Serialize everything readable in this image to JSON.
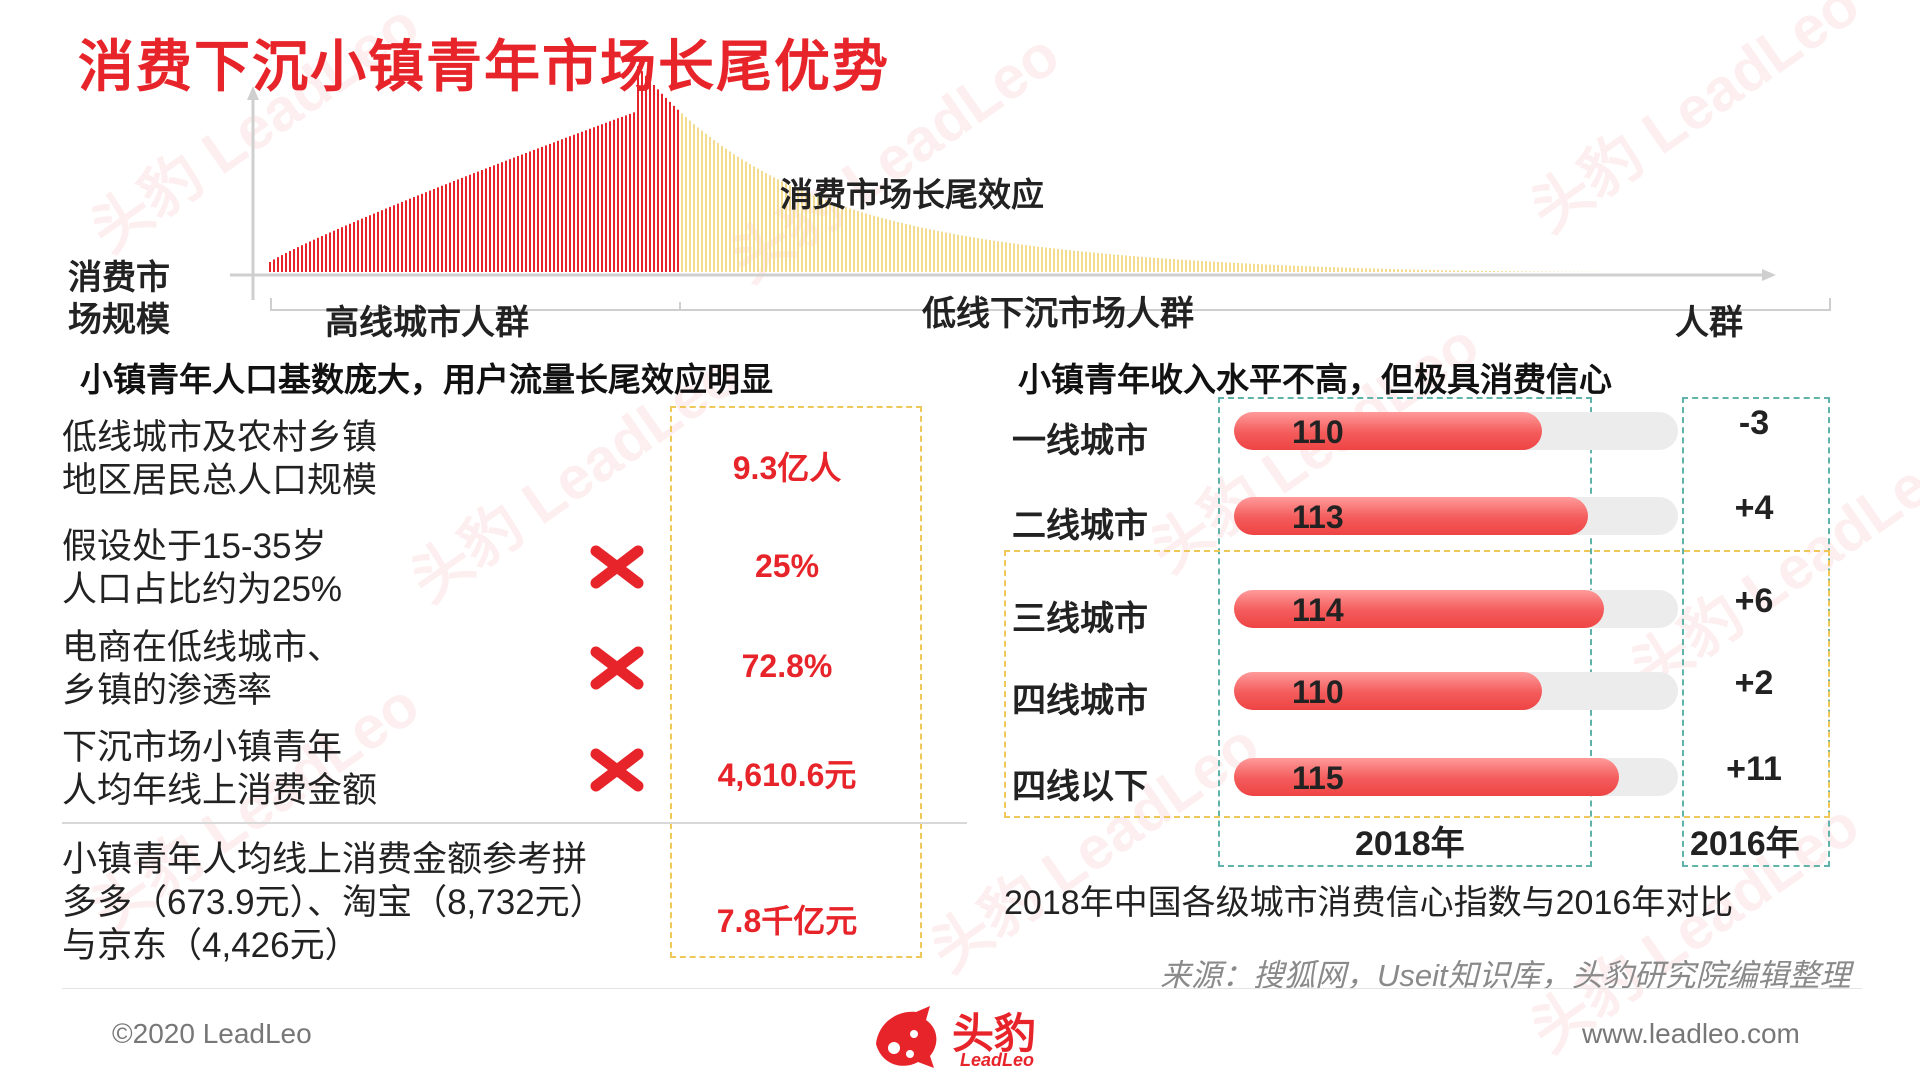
{
  "title": "消费下沉小镇青年市场长尾优势",
  "chart_top": {
    "type": "area",
    "ylabel_line1": "消费市",
    "ylabel_line2": "场规模",
    "xlabel": "人群",
    "annotation": "消费市场长尾效应",
    "segments": [
      "高线城市人群",
      "低线下沉市场人群"
    ]
  },
  "left": {
    "section_title": "小镇青年人口基数庞大，用户流量长尾效应明显",
    "rows": [
      {
        "line1": "低线城市及农村乡镇",
        "line2": "地区居民总人口规模",
        "value": "9.3亿人"
      },
      {
        "line1": "假设处于15-35岁",
        "line2": "人口占比约为25%",
        "value": "25%"
      },
      {
        "line1": "电商在低线城市、",
        "line2": "乡镇的渗透率",
        "value": "72.8%"
      },
      {
        "line1": "下沉市场小镇青年",
        "line2": "人均年线上消费金额",
        "value": "4,610.6元"
      }
    ],
    "result": {
      "line1": "小镇青年人均线上消费金额参考拼",
      "line2": "多多（673.9元）、淘宝（8,732元）",
      "line3": "与京东（4,426元）",
      "value": "7.8千亿元"
    },
    "multiply_icon": "cross-multiply-icon"
  },
  "right": {
    "section_title": "小镇青年收入水平不高，但极具消费信心",
    "col_2018": "2018年",
    "col_2016": "2016年",
    "caption": "2018年中国各级城市消费信心指数与2016年对比"
  },
  "chart_data": {
    "type": "bar",
    "orientation": "horizontal",
    "categories": [
      "一线城市",
      "二线城市",
      "三线城市",
      "四线城市",
      "四线以下"
    ],
    "series": [
      {
        "name": "2018年",
        "values": [
          110,
          113,
          114,
          110,
          115
        ]
      }
    ],
    "diff_vs_2016": [
      "-3",
      "+4",
      "+6",
      "+2",
      "+11"
    ],
    "xlim": [
      90,
      119
    ],
    "caption": "2018年中国各级城市消费信心指数与2016年对比"
  },
  "source": "来源：搜狐网，Useit知识库，头豹研究院编辑整理",
  "footer": {
    "copyright": "©2020 LeadLeo",
    "logo_cn": "头豹",
    "logo_en": "LeadLeo",
    "url": "www.leadleo.com"
  },
  "colors": {
    "brand_red": "#e8242b",
    "bar_red": "#f45b5b",
    "dash_yellow": "#f0c85a",
    "dash_green": "#5fb3a8",
    "tail_yellow": "#f3dc8e"
  }
}
